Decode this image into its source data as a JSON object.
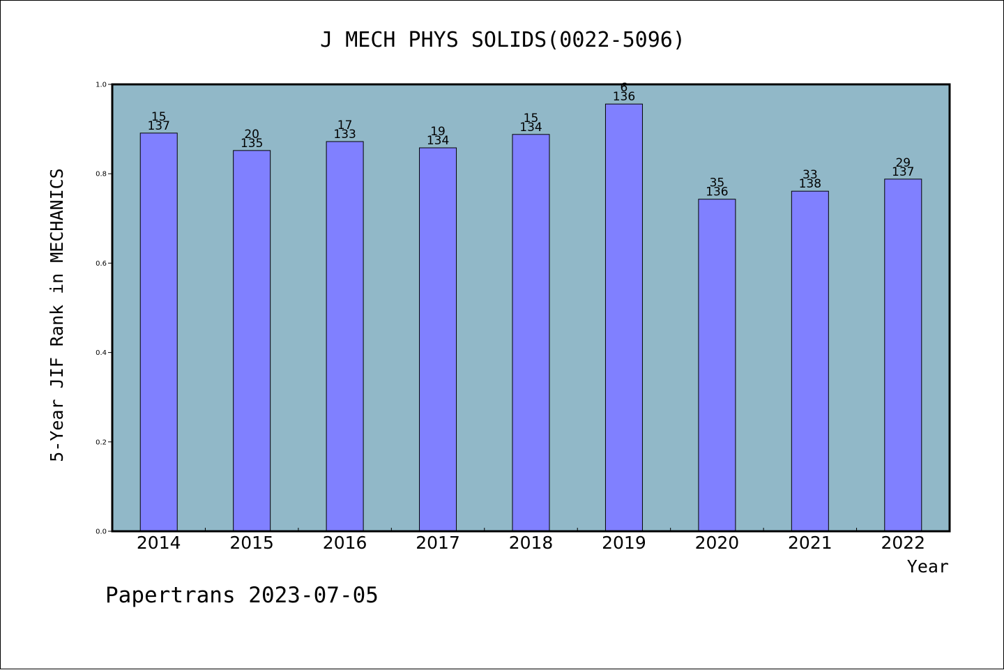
{
  "chart_data": {
    "type": "bar",
    "title": "J MECH PHYS SOLIDS(0022-5096)",
    "xlabel": "Year",
    "ylabel": "5-Year JIF Rank in MECHANICS",
    "ylim": [
      0,
      1.0
    ],
    "yticks": [
      "0.0",
      "0.2",
      "0.4",
      "0.6",
      "0.8",
      "1.0"
    ],
    "categories": [
      "2014",
      "2015",
      "2016",
      "2017",
      "2018",
      "2019",
      "2020",
      "2021",
      "2022"
    ],
    "values": [
      0.891,
      0.852,
      0.872,
      0.858,
      0.888,
      0.956,
      0.743,
      0.761,
      0.788
    ],
    "rank_labels": [
      "15",
      "20",
      "17",
      "19",
      "15",
      "6",
      "35",
      "33",
      "29"
    ],
    "total_labels": [
      "137",
      "135",
      "133",
      "134",
      "134",
      "136",
      "136",
      "138",
      "137"
    ],
    "grid": false,
    "legend": "none",
    "colors": {
      "plot_background": "#91b8c8",
      "bar_fill": "#8080ff",
      "bar_stroke": "#000000"
    }
  },
  "footer": {
    "text": "Papertrans 2023-07-05"
  }
}
